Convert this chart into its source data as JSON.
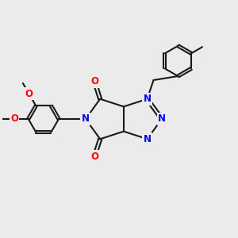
{
  "bg_color": "#ebebeb",
  "bond_color": "#1a1a1a",
  "n_color": "#0000ff",
  "o_color": "#ff0000",
  "font_size_atom": 8.5,
  "line_width": 1.5,
  "figsize": [
    3.0,
    3.0
  ],
  "dpi": 100,
  "xlim": [
    0,
    10
  ],
  "ylim": [
    0,
    10
  ]
}
